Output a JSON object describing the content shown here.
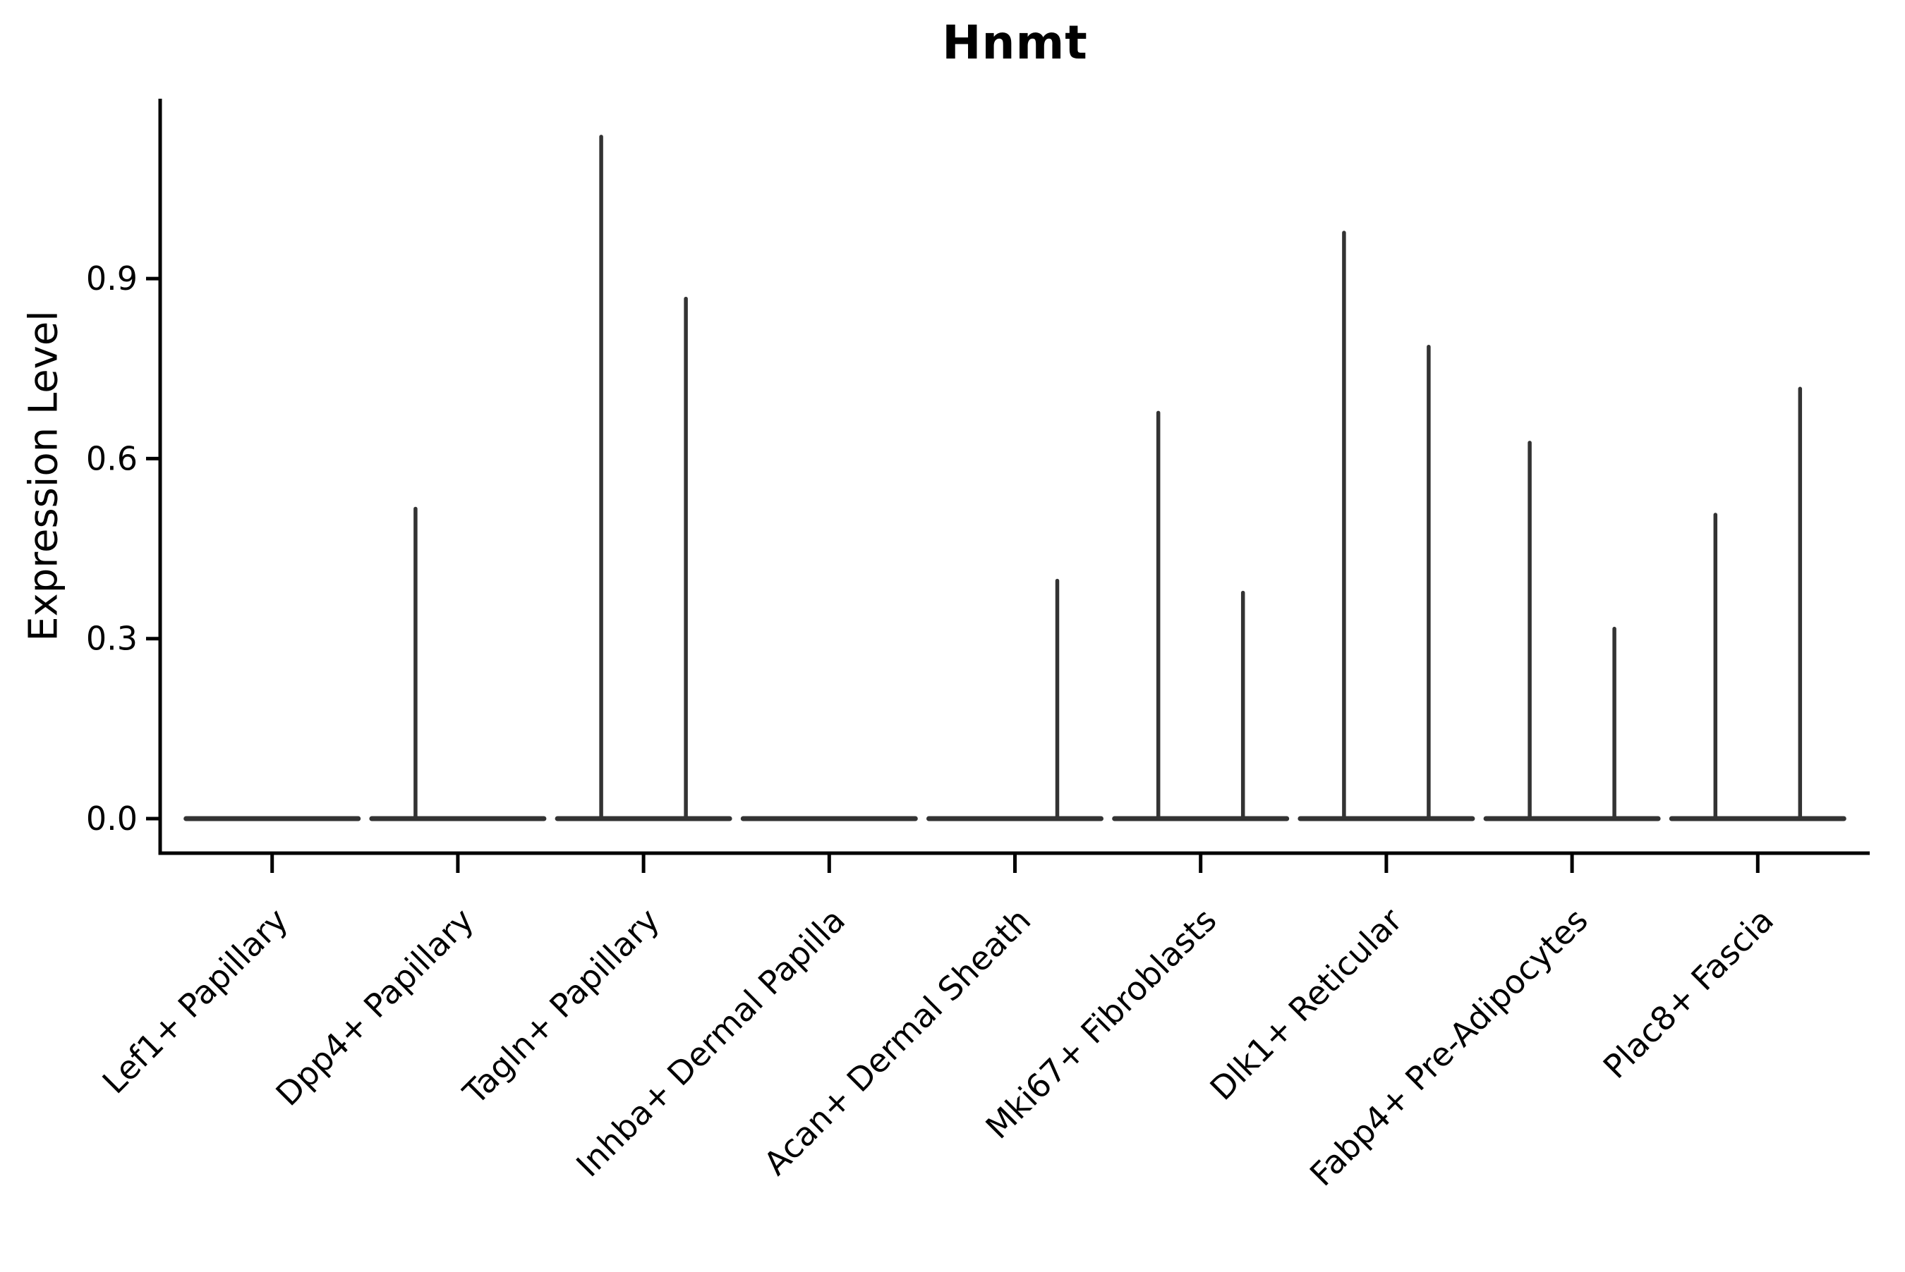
{
  "title": "Hnmt",
  "y_axis": {
    "label": "Expression Level",
    "tick_labels": [
      "0.0",
      "0.3",
      "0.6",
      "0.9"
    ]
  },
  "chart_data": {
    "type": "violin",
    "title": "Hnmt",
    "xlabel": "",
    "ylabel": "Expression Level",
    "ylim": [
      -0.06,
      1.2
    ],
    "yticks": [
      0,
      0.3,
      0.6,
      0.9
    ],
    "grid": false,
    "legend": "none",
    "categories": [
      "Lef1+ Papillary",
      "Dpp4+ Papillary",
      "Tagln+ Papillary",
      "Inhba+ Dermal Papilla",
      "Acan+ Dermal Sheath",
      "Mki67+ Fibroblasts",
      "Dlk1+ Reticular",
      "Fabp4+ Pre-Adipocytes",
      "Plac8+ Fascia"
    ],
    "violins_per_category": 2,
    "series": [
      {
        "name": "left-violin",
        "max_expression": [
          0,
          0.52,
          1.14,
          0,
          0,
          0.68,
          0.98,
          0.63,
          0.51
        ]
      },
      {
        "name": "right-violin",
        "max_expression": [
          0,
          0,
          0.87,
          0,
          0.4,
          0.38,
          0.79,
          0.32,
          0.72
        ]
      }
    ],
    "baseline_value": 0,
    "shape_note": "each violin is collapsed: a wide flat line at expression 0 with a hair-thin vertical spike up to its maximum expression value",
    "colors": {
      "violin": "#333333",
      "axis": "#000000",
      "text": "#000000",
      "background": "#ffffff"
    }
  }
}
